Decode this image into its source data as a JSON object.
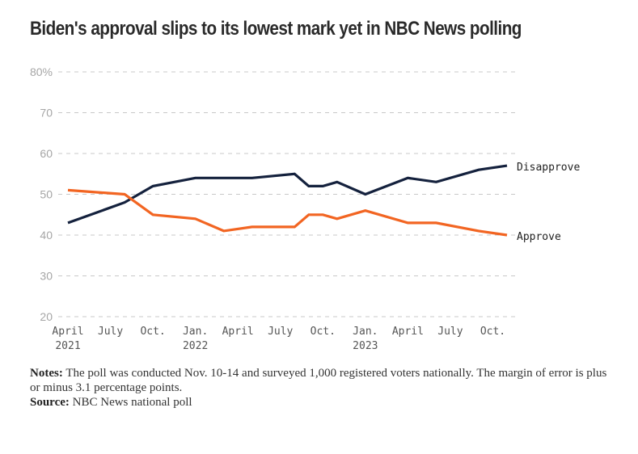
{
  "title": "Biden's approval slips to its lowest mark yet in NBC News polling",
  "notes": {
    "notes_label": "Notes:",
    "notes_text": "The poll was conducted Nov. 10-14 and surveyed 1,000 registered voters nationally. The margin of error is plus or minus 3.1 percentage points.",
    "source_label": "Source:",
    "source_text": "NBC News national poll"
  },
  "colors": {
    "approve": "#f26522",
    "disapprove": "#14213d",
    "grid": "#c8c8c8"
  },
  "chart_data": {
    "type": "line",
    "title": "Biden's approval slips to its lowest mark yet in NBC News polling",
    "xlabel": "",
    "ylabel": "",
    "ylim": [
      20,
      80
    ],
    "yticks": [
      20,
      30,
      40,
      50,
      60,
      70,
      80
    ],
    "ytick_labels": [
      "20",
      "30",
      "40",
      "50",
      "60",
      "70",
      "80%"
    ],
    "grid": true,
    "x_unit": "months since April 2021",
    "xlim": [
      0,
      31
    ],
    "xticks": [
      {
        "x": 0,
        "label": "April",
        "year": "2021"
      },
      {
        "x": 3,
        "label": "July",
        "year": ""
      },
      {
        "x": 6,
        "label": "Oct.",
        "year": ""
      },
      {
        "x": 9,
        "label": "Jan.",
        "year": "2022"
      },
      {
        "x": 12,
        "label": "April",
        "year": ""
      },
      {
        "x": 15,
        "label": "July",
        "year": ""
      },
      {
        "x": 18,
        "label": "Oct.",
        "year": ""
      },
      {
        "x": 21,
        "label": "Jan.",
        "year": "2023"
      },
      {
        "x": 24,
        "label": "April",
        "year": ""
      },
      {
        "x": 27,
        "label": "July",
        "year": ""
      },
      {
        "x": 30,
        "label": "Oct.",
        "year": ""
      }
    ],
    "x": [
      0,
      4,
      6,
      9,
      11,
      13,
      16,
      17,
      18,
      19,
      21,
      24,
      26,
      29,
      31
    ],
    "series": [
      {
        "name": "Disapprove",
        "values": [
          43,
          48,
          52,
          54,
          54,
          54,
          55,
          52,
          52,
          53,
          50,
          54,
          53,
          56,
          57
        ]
      },
      {
        "name": "Approve",
        "values": [
          51,
          50,
          45,
          44,
          41,
          42,
          42,
          45,
          45,
          44,
          46,
          43,
          43,
          41,
          40
        ]
      }
    ],
    "legend": "direct-labels-right"
  }
}
